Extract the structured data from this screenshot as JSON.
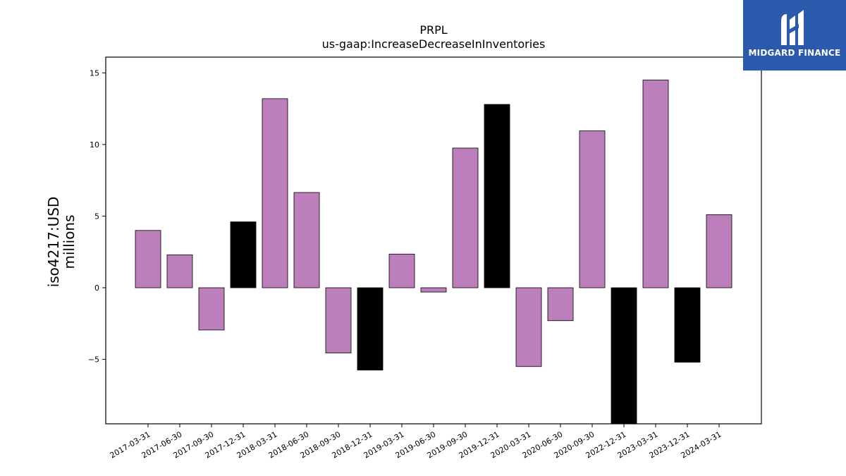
{
  "chart_data": {
    "type": "bar",
    "title": "PRPL",
    "subtitle": "us-gaap:IncreaseDecreaseInInventories",
    "ylabel": "iso4217:USD",
    "ylabel2": "millions",
    "ylim": [
      -9.5,
      16.1
    ],
    "yticks": [
      -5,
      0,
      5,
      10,
      15
    ],
    "ytick_labels": [
      "−5",
      "0",
      "5",
      "10",
      "15"
    ],
    "grid": false,
    "categories": [
      "2017-03-31",
      "2017-06-30",
      "2017-09-30",
      "2017-12-31",
      "2018-03-31",
      "2018-06-30",
      "2018-09-30",
      "2018-12-31",
      "2019-03-31",
      "2019-06-30",
      "2019-09-30",
      "2019-12-31",
      "2020-03-31",
      "2020-06-30",
      "2020-09-30",
      "2022-12-31",
      "2023-03-31",
      "2023-12-31",
      "2024-03-31"
    ],
    "values": [
      4.0,
      2.3,
      -2.95,
      4.6,
      13.2,
      6.65,
      -4.55,
      -5.75,
      2.35,
      -0.3,
      9.75,
      12.8,
      -5.5,
      -2.3,
      10.95,
      -9.6,
      14.5,
      -5.2,
      5.1
    ],
    "highlight": [
      false,
      false,
      false,
      true,
      false,
      false,
      false,
      true,
      false,
      false,
      false,
      true,
      false,
      false,
      false,
      true,
      false,
      true,
      false
    ],
    "colors": {
      "bar": "#bc7fbc",
      "highlight": "#000000",
      "edge": "#000000"
    }
  },
  "logo": {
    "text": "MIDGARD FINANCE",
    "background": "#2b5aad",
    "icon": "midgard-logo-icon"
  }
}
